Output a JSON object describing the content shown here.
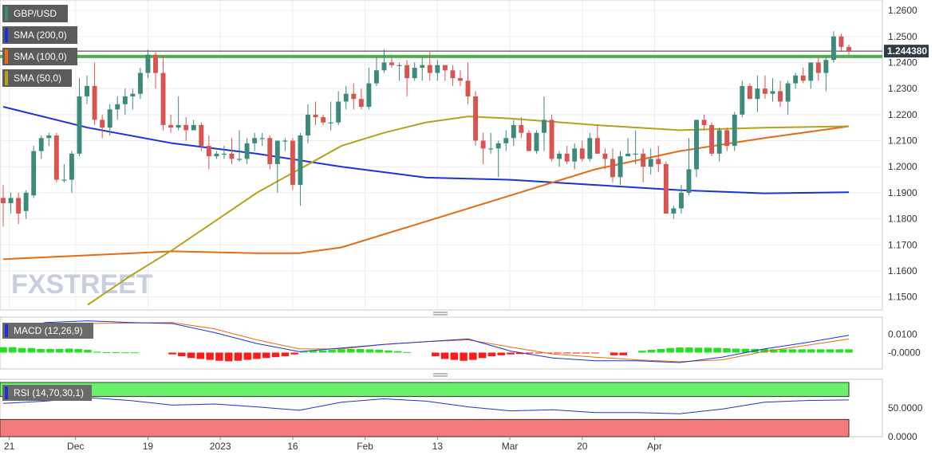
{
  "chart_data": {
    "type": "candlestick",
    "symbol": "GBP/USD",
    "price_panel": {
      "ylim": [
        1.145,
        1.264
      ],
      "y_ticks": [
        "1.2600",
        "1.2500",
        "1.2400",
        "1.2300",
        "1.2200",
        "1.2100",
        "1.2000",
        "1.1900",
        "1.1800",
        "1.1700",
        "1.1600",
        "1.1500"
      ],
      "current_price_label": "1.244380",
      "current_price": 1.24438,
      "horizontal_level": 1.2423,
      "grid": true,
      "candles_ohlc": [
        [
          1.188,
          1.193,
          1.177,
          1.186
        ],
        [
          1.186,
          1.19,
          1.182,
          1.188
        ],
        [
          1.188,
          1.19,
          1.178,
          1.182
        ],
        [
          1.183,
          1.191,
          1.18,
          1.19
        ],
        [
          1.189,
          1.208,
          1.188,
          1.206
        ],
        [
          1.206,
          1.212,
          1.203,
          1.211
        ],
        [
          1.211,
          1.213,
          1.208,
          1.212
        ],
        [
          1.212,
          1.213,
          1.194,
          1.195
        ],
        [
          1.195,
          1.201,
          1.194,
          1.195
        ],
        [
          1.195,
          1.206,
          1.19,
          1.205
        ],
        [
          1.205,
          1.234,
          1.204,
          1.227
        ],
        [
          1.227,
          1.235,
          1.224,
          1.231
        ],
        [
          1.231,
          1.24,
          1.216,
          1.218
        ],
        [
          1.218,
          1.22,
          1.211,
          1.215
        ],
        [
          1.215,
          1.224,
          1.212,
          1.222
        ],
        [
          1.222,
          1.227,
          1.218,
          1.224
        ],
        [
          1.224,
          1.23,
          1.22,
          1.227
        ],
        [
          1.227,
          1.23,
          1.222,
          1.228
        ],
        [
          1.228,
          1.238,
          1.226,
          1.236
        ],
        [
          1.236,
          1.245,
          1.234,
          1.243
        ],
        [
          1.243,
          1.244,
          1.23,
          1.236
        ],
        [
          1.236,
          1.243,
          1.214,
          1.216
        ],
        [
          1.216,
          1.22,
          1.213,
          1.215
        ],
        [
          1.215,
          1.227,
          1.214,
          1.216
        ],
        [
          1.216,
          1.219,
          1.21,
          1.214
        ],
        [
          1.214,
          1.218,
          1.214,
          1.216
        ],
        [
          1.216,
          1.217,
          1.206,
          1.208
        ],
        [
          1.208,
          1.212,
          1.199,
          1.204
        ],
        [
          1.204,
          1.206,
          1.203,
          1.205
        ],
        [
          1.205,
          1.208,
          1.203,
          1.205
        ],
        [
          1.205,
          1.211,
          1.201,
          1.203
        ],
        [
          1.203,
          1.214,
          1.202,
          1.203
        ],
        [
          1.203,
          1.211,
          1.201,
          1.209
        ],
        [
          1.209,
          1.213,
          1.206,
          1.211
        ],
        [
          1.211,
          1.213,
          1.208,
          1.211
        ],
        [
          1.211,
          1.212,
          1.199,
          1.201
        ],
        [
          1.201,
          1.21,
          1.19,
          1.21
        ],
        [
          1.21,
          1.211,
          1.206,
          1.21
        ],
        [
          1.21,
          1.211,
          1.191,
          1.193
        ],
        [
          1.193,
          1.213,
          1.185,
          1.212
        ],
        [
          1.212,
          1.224,
          1.209,
          1.22
        ],
        [
          1.22,
          1.225,
          1.216,
          1.219
        ],
        [
          1.219,
          1.22,
          1.216,
          1.217
        ],
        [
          1.217,
          1.225,
          1.214,
          1.217
        ],
        [
          1.217,
          1.229,
          1.216,
          1.225
        ],
        [
          1.225,
          1.231,
          1.222,
          1.228
        ],
        [
          1.228,
          1.232,
          1.222,
          1.226
        ],
        [
          1.226,
          1.23,
          1.222,
          1.223
        ],
        [
          1.223,
          1.238,
          1.222,
          1.232
        ],
        [
          1.232,
          1.242,
          1.231,
          1.237
        ],
        [
          1.237,
          1.245,
          1.236,
          1.24
        ],
        [
          1.24,
          1.242,
          1.238,
          1.239
        ],
        [
          1.239,
          1.24,
          1.233,
          1.239
        ],
        [
          1.239,
          1.241,
          1.227,
          1.234
        ],
        [
          1.234,
          1.24,
          1.233,
          1.238
        ],
        [
          1.238,
          1.242,
          1.233,
          1.239
        ],
        [
          1.239,
          1.244,
          1.233,
          1.236
        ],
        [
          1.236,
          1.241,
          1.233,
          1.239
        ],
        [
          1.239,
          1.239,
          1.233,
          1.237
        ],
        [
          1.237,
          1.239,
          1.231,
          1.234
        ],
        [
          1.234,
          1.237,
          1.231,
          1.233
        ],
        [
          1.233,
          1.24,
          1.224,
          1.227
        ],
        [
          1.227,
          1.229,
          1.208,
          1.21
        ],
        [
          1.21,
          1.213,
          1.201,
          1.207
        ],
        [
          1.207,
          1.213,
          1.205,
          1.207
        ],
        [
          1.207,
          1.21,
          1.196,
          1.209
        ],
        [
          1.209,
          1.214,
          1.206,
          1.211
        ],
        [
          1.211,
          1.218,
          1.208,
          1.216
        ],
        [
          1.216,
          1.219,
          1.211,
          1.213
        ],
        [
          1.213,
          1.214,
          1.206,
          1.206
        ],
        [
          1.206,
          1.214,
          1.205,
          1.213
        ],
        [
          1.213,
          1.227,
          1.206,
          1.218
        ],
        [
          1.218,
          1.22,
          1.202,
          1.203
        ],
        [
          1.203,
          1.206,
          1.2,
          1.205
        ],
        [
          1.205,
          1.208,
          1.201,
          1.202
        ],
        [
          1.202,
          1.209,
          1.199,
          1.207
        ],
        [
          1.207,
          1.21,
          1.202,
          1.203
        ],
        [
          1.203,
          1.213,
          1.202,
          1.211
        ],
        [
          1.211,
          1.216,
          1.205,
          1.205
        ],
        [
          1.205,
          1.207,
          1.199,
          1.203
        ],
        [
          1.203,
          1.207,
          1.194,
          1.196
        ],
        [
          1.196,
          1.206,
          1.193,
          1.204
        ],
        [
          1.204,
          1.211,
          1.204,
          1.205
        ],
        [
          1.205,
          1.214,
          1.201,
          1.205
        ],
        [
          1.205,
          1.207,
          1.194,
          1.2
        ],
        [
          1.2,
          1.207,
          1.197,
          1.203
        ],
        [
          1.203,
          1.208,
          1.198,
          1.201
        ],
        [
          1.201,
          1.202,
          1.182,
          1.182
        ],
        [
          1.182,
          1.185,
          1.18,
          1.184
        ],
        [
          1.184,
          1.193,
          1.182,
          1.19
        ],
        [
          1.19,
          1.211,
          1.189,
          1.199
        ],
        [
          1.199,
          1.218,
          1.196,
          1.218
        ],
        [
          1.218,
          1.22,
          1.214,
          1.216
        ],
        [
          1.216,
          1.217,
          1.204,
          1.205
        ],
        [
          1.205,
          1.215,
          1.202,
          1.214
        ],
        [
          1.214,
          1.215,
          1.206,
          1.208
        ],
        [
          1.208,
          1.221,
          1.206,
          1.22
        ],
        [
          1.22,
          1.233,
          1.219,
          1.231
        ],
        [
          1.231,
          1.232,
          1.226,
          1.226
        ],
        [
          1.226,
          1.235,
          1.221,
          1.23
        ],
        [
          1.23,
          1.235,
          1.226,
          1.228
        ],
        [
          1.228,
          1.234,
          1.225,
          1.229
        ],
        [
          1.229,
          1.233,
          1.223,
          1.225
        ],
        [
          1.225,
          1.233,
          1.22,
          1.232
        ],
        [
          1.232,
          1.236,
          1.23,
          1.235
        ],
        [
          1.235,
          1.238,
          1.232,
          1.233
        ],
        [
          1.233,
          1.24,
          1.23,
          1.24
        ],
        [
          1.24,
          1.242,
          1.233,
          1.236
        ],
        [
          1.236,
          1.242,
          1.229,
          1.241
        ],
        [
          1.241,
          1.252,
          1.24,
          1.25
        ],
        [
          1.25,
          1.251,
          1.244,
          1.246
        ],
        [
          1.246,
          1.247,
          1.243,
          1.2444
        ]
      ],
      "moving_averages": [
        {
          "name": "SMA (200,0)",
          "color": "#1a33d6",
          "x": [
            0,
            0.1,
            0.2,
            0.3,
            0.4,
            0.5,
            0.6,
            0.7,
            0.8,
            0.9,
            1.0
          ],
          "values": [
            1.223,
            1.215,
            1.209,
            1.205,
            1.2,
            1.1958,
            1.195,
            1.193,
            1.191,
            1.1898,
            1.1902
          ]
        },
        {
          "name": "SMA (100,0)",
          "color": "#e56c12",
          "x": [
            0,
            0.1,
            0.2,
            0.3,
            0.35,
            0.4,
            0.5,
            0.6,
            0.7,
            0.8,
            0.9,
            1.0
          ],
          "values": [
            1.1645,
            1.166,
            1.1675,
            1.1668,
            1.1668,
            1.169,
            1.179,
            1.189,
            1.199,
            1.206,
            1.211,
            1.2155
          ]
        },
        {
          "name": "SMA (50,0)",
          "color": "#b5a11c",
          "x": [
            0.1,
            0.15,
            0.2,
            0.3,
            0.4,
            0.45,
            0.5,
            0.55,
            0.6,
            0.7,
            0.8,
            0.9,
            1.0
          ],
          "values": [
            1.147,
            1.158,
            1.168,
            1.19,
            1.208,
            1.213,
            1.217,
            1.2193,
            1.2185,
            1.216,
            1.214,
            1.215,
            1.2155
          ]
        }
      ]
    },
    "x_tick_labels": [
      "21",
      "Dec",
      "19",
      "2023",
      "16",
      "Feb",
      "13",
      "Mar",
      "20",
      "Apr"
    ],
    "x_tick_positions": [
      0.8,
      9.5,
      19,
      28.5,
      38,
      47.5,
      57,
      66.5,
      76,
      85.5
    ],
    "macd_panel": {
      "label": "MACD (12,26,9)",
      "y_ticks": [
        "0.0100",
        "-0.0000"
      ],
      "ylim": [
        -0.009,
        0.0195
      ],
      "macd_line": {
        "x": [
          0,
          0.05,
          0.1,
          0.15,
          0.2,
          0.25,
          0.3,
          0.35,
          0.4,
          0.45,
          0.5,
          0.55,
          0.6,
          0.65,
          0.7,
          0.75,
          0.8,
          0.85,
          0.9,
          0.95,
          1.0
        ],
        "values": [
          0.012,
          0.0165,
          0.0175,
          0.0165,
          0.016,
          0.011,
          0.005,
          0.0005,
          0.0025,
          0.0045,
          0.006,
          0.0075,
          0.0008,
          -0.003,
          -0.0045,
          -0.0045,
          -0.0055,
          -0.0025,
          0.002,
          0.0055,
          0.0095
        ]
      },
      "signal_line": {
        "x": [
          0,
          0.1,
          0.2,
          0.25,
          0.3,
          0.35,
          0.4,
          0.45,
          0.5,
          0.55,
          0.6,
          0.65,
          0.7,
          0.75,
          0.8,
          0.85,
          0.9,
          0.95,
          1.0
        ],
        "values": [
          0.014,
          0.016,
          0.0165,
          0.013,
          0.007,
          0.002,
          0.002,
          0.0045,
          0.006,
          0.007,
          0.003,
          -0.0008,
          -0.0025,
          -0.004,
          -0.005,
          -0.004,
          0.0005,
          0.004,
          0.0075
        ]
      },
      "histogram": [
        0.003,
        0.003,
        0.0025,
        0.0025,
        0.002,
        0.002,
        0.002,
        0.0022,
        0.002,
        0.0015,
        0.0005,
        0.0002,
        0.0002,
        0.0001,
        0.0001,
        0.0,
        0.0,
        0.0,
        -0.001,
        -0.002,
        -0.003,
        -0.0035,
        -0.004,
        -0.0045,
        -0.0048,
        -0.0045,
        -0.004,
        -0.0035,
        -0.003,
        -0.0025,
        -0.002,
        -0.001,
        0.0005,
        0.001,
        0.0012,
        0.0015,
        0.0018,
        0.002,
        0.002,
        0.0018,
        0.0016,
        0.0012,
        0.0008,
        0.0003,
        0.0,
        0.0,
        -0.002,
        -0.0035,
        -0.004,
        -0.0045,
        -0.004,
        -0.003,
        -0.002,
        -0.0015,
        -0.001,
        -0.0008,
        -0.0005,
        -0.0003,
        -0.0002,
        -0.0002,
        -0.0002,
        -0.0001,
        -0.0001,
        -0.0001,
        0.0,
        -0.0015,
        -0.0015,
        0.0,
        0.001,
        0.0015,
        0.002,
        0.0025,
        0.0028,
        0.0028,
        0.0027,
        0.0027,
        0.0026,
        0.0024,
        0.0022,
        0.0021,
        0.002,
        0.002,
        0.0018,
        0.0018,
        0.0018,
        0.0018,
        0.0018,
        0.0018,
        0.0018,
        0.0018,
        0.0018
      ]
    },
    "rsi_panel": {
      "label": "RSI (14,70,30,1)",
      "y_ticks": [
        "50.0000",
        "0.0000"
      ],
      "ylim": [
        0,
        100
      ],
      "overbought": 70,
      "oversold": 30,
      "rsi": {
        "x": [
          0,
          0.05,
          0.1,
          0.15,
          0.2,
          0.25,
          0.3,
          0.35,
          0.4,
          0.45,
          0.5,
          0.55,
          0.6,
          0.65,
          0.7,
          0.75,
          0.8,
          0.85,
          0.9,
          0.95,
          1.0
        ],
        "values": [
          58,
          62,
          68,
          63,
          55,
          57,
          52,
          46,
          60,
          66,
          62,
          52,
          45,
          47,
          42,
          42,
          40,
          48,
          60,
          63,
          64
        ]
      }
    },
    "watermark": "FXSTREET"
  },
  "legend": {
    "symbol": "GBP/USD",
    "sma200": "SMA (200,0)",
    "sma100": "SMA (100,0)",
    "sma50": "SMA (50,0)",
    "macd": "MACD (12,26,9)",
    "rsi": "RSI (14,70,30,1)"
  },
  "colors": {
    "bull": "#3c8a7a",
    "bear": "#d9534f",
    "hline": "#4caf50",
    "hist_pos": "#22e022",
    "hist_neg": "#ff1a1a",
    "macd_line": "#1a33d6",
    "signal_line": "#e56c12",
    "rsi_line": "#2233cc",
    "rsi_ob": "#6af26a",
    "rsi_os": "#f57a7a"
  }
}
